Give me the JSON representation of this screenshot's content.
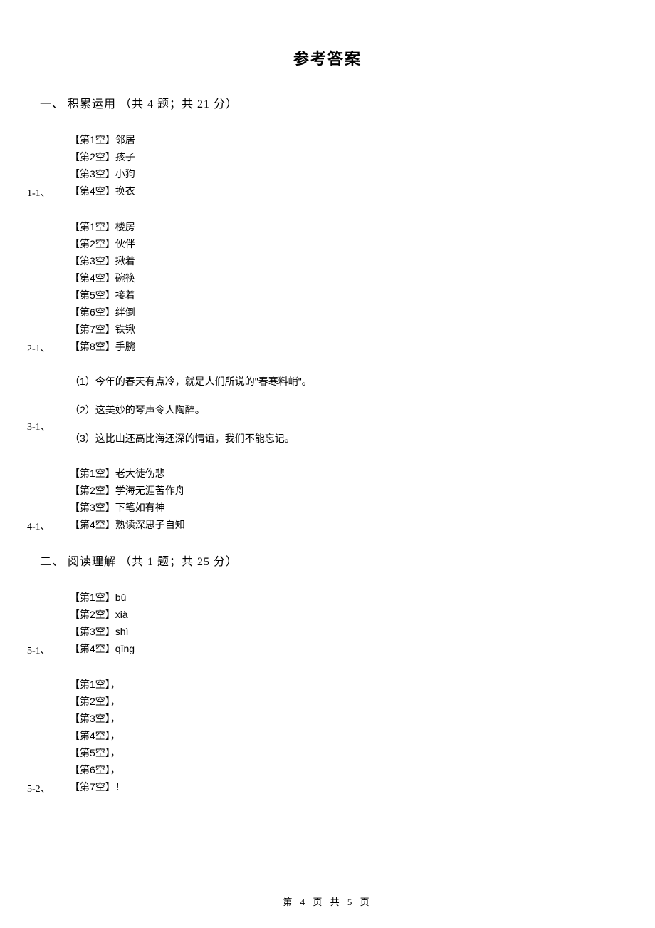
{
  "page_title": "参考答案",
  "section_one": {
    "header": "一、 积累运用 （共 4 题；共 21 分）",
    "groups": [
      {
        "label": "1-1、",
        "items": [
          "【第1空】邻居",
          "【第2空】孩子",
          "【第3空】小狗",
          "【第4空】换衣"
        ]
      },
      {
        "label": "2-1、",
        "items": [
          "【第1空】楼房",
          "【第2空】伙伴",
          "【第3空】揪着",
          "【第4空】碗筷",
          "【第5空】接着",
          "【第6空】绊倒",
          "【第7空】铁锹",
          "【第8空】手腕"
        ]
      }
    ],
    "sentence_group": {
      "label": "3-1、",
      "sentences": [
        "（1）今年的春天有点冷，就是人们所说的\"春寒料峭\"。",
        "（2）这美妙的琴声令人陶醉。",
        "（3）这比山还高比海还深的情谊，我们不能忘记。"
      ]
    },
    "group_four": {
      "label": "4-1、",
      "items": [
        "【第1空】老大徒伤悲",
        "【第2空】学海无涯苦作舟",
        "【第3空】下笔如有神",
        "【第4空】熟读深思子自知"
      ]
    }
  },
  "section_two": {
    "header": "二、 阅读理解 （共 1 题；共 25 分）",
    "groups": [
      {
        "label": "5-1、",
        "items": [
          "【第1空】bǔ",
          "【第2空】xià",
          "【第3空】shì",
          "【第4空】qīng"
        ]
      },
      {
        "label": "5-2、",
        "items": [
          "【第1空】，",
          "【第2空】，",
          "【第3空】，",
          "【第4空】，",
          "【第5空】，",
          "【第6空】，",
          "【第7空】！"
        ]
      }
    ]
  },
  "footer": "第 4 页 共 5 页"
}
